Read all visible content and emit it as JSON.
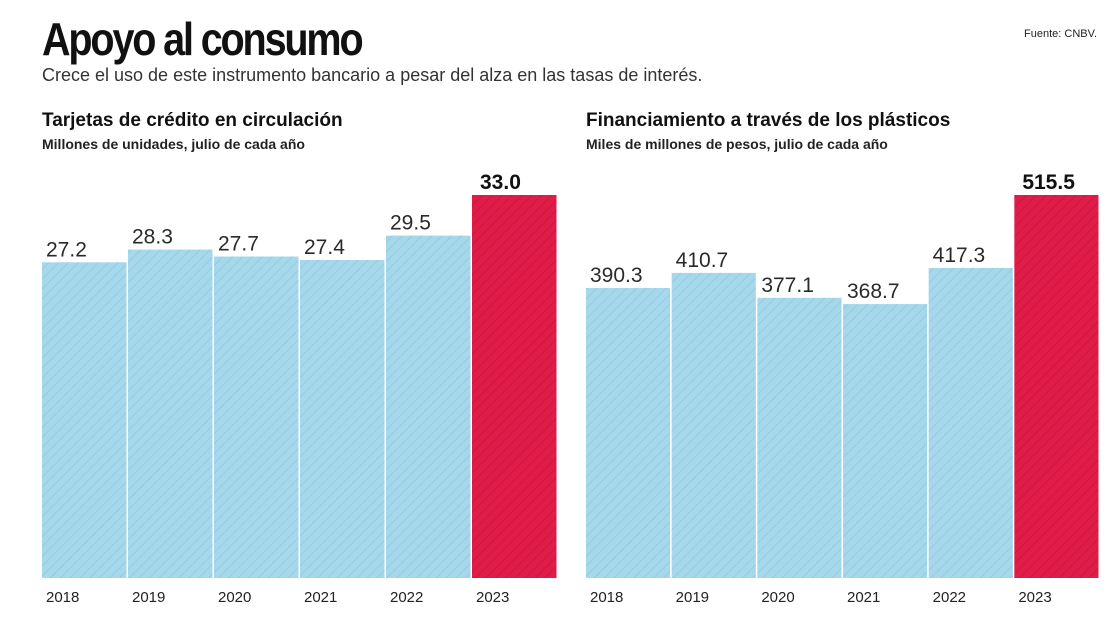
{
  "header": {
    "title": "Apoyo al consumo",
    "subtitle": "Crece el uso de este instrumento bancario a pesar del alza en las tasas de interés.",
    "source": "Fuente: CNBV."
  },
  "colors": {
    "bar": "#a6d8ec",
    "bar_highlight": "#e01c48",
    "hatch": "#8fc3d8",
    "hatch_highlight": "#c2153b"
  },
  "chart_data": [
    {
      "type": "bar",
      "title": "Tarjetas de crédito en circulación",
      "subtitle": "Millones de unidades, julio de cada año",
      "categories": [
        "2018",
        "2019",
        "2020",
        "2021",
        "2022",
        "2023"
      ],
      "values": [
        27.2,
        28.3,
        27.7,
        27.4,
        29.5,
        33.0
      ],
      "labels": [
        "27.2",
        "28.3",
        "27.7",
        "27.4",
        "29.5",
        "33.0"
      ],
      "highlight_index": 5,
      "ylim": [
        0,
        33.0
      ]
    },
    {
      "type": "bar",
      "title": "Financiamiento a través de los plásticos",
      "subtitle": "Miles de millones de pesos, julio de cada año",
      "categories": [
        "2018",
        "2019",
        "2020",
        "2021",
        "2022",
        "2023"
      ],
      "values": [
        390.3,
        410.7,
        377.1,
        368.7,
        417.3,
        515.5
      ],
      "labels": [
        "390.3",
        "410.7",
        "377.1",
        "368.7",
        "417.3",
        "515.5"
      ],
      "highlight_index": 5,
      "ylim": [
        0,
        515.5
      ]
    }
  ]
}
